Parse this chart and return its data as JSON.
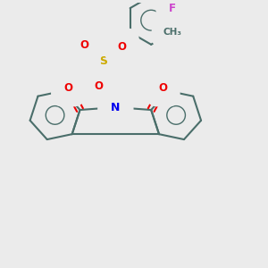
{
  "bg_color": "#ebebeb",
  "bond_color": "#4a6e6a",
  "bond_width": 1.5,
  "atom_colors": {
    "N": "#0000ee",
    "O": "#ee0000",
    "S": "#ccaa00",
    "F": "#cc44cc",
    "C": "#4a6e6a"
  }
}
